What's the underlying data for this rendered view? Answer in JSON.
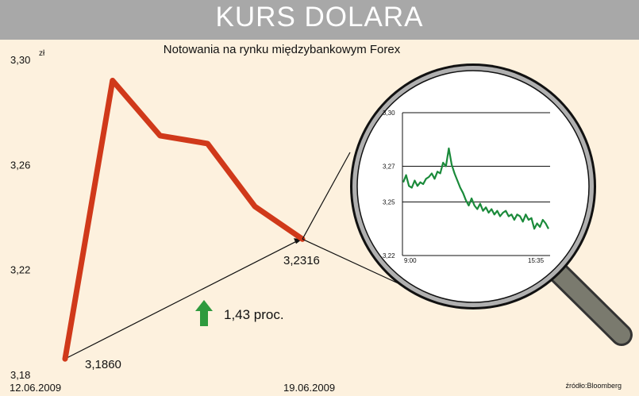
{
  "header": {
    "title": "KURS DOLARA"
  },
  "subtitle": "Notowania na rynku międzybankowym Forex",
  "unit": "zł",
  "source": "źródło:Bloomberg",
  "colors": {
    "main_line": "#d0391a",
    "inset_line": "#1a8a3a",
    "up_arrow": "#2e9a3e",
    "banner": "#a8a8a8",
    "background": "#fdf1de"
  },
  "chart_data": [
    {
      "type": "line",
      "title": "Notowania na rynku międzybankowym Forex",
      "ylim": [
        3.18,
        3.3
      ],
      "yticks": [
        "3,18",
        "3,22",
        "3,26",
        "3,30"
      ],
      "x_labels": [
        "12.06.2009",
        "19.06.2009"
      ],
      "series": [
        {
          "values": [
            3.186,
            3.292,
            3.271,
            3.268,
            3.244,
            3.2316
          ]
        }
      ],
      "annotations": {
        "start_value": "3,1860",
        "end_value": "3,2316",
        "change": "1,43 proc.",
        "change_icon": "up-arrow-icon"
      },
      "grid": false
    },
    {
      "type": "line",
      "ylim": [
        3.22,
        3.3
      ],
      "yticks": [
        "3,22",
        "3,25",
        "3,27",
        "3,30"
      ],
      "x_labels": [
        "9:00",
        "15:35"
      ],
      "gridlines": [
        3.3,
        3.27,
        3.25
      ],
      "series": [
        {
          "values": [
            3.261,
            3.265,
            3.259,
            3.258,
            3.262,
            3.259,
            3.261,
            3.26,
            3.263,
            3.264,
            3.266,
            3.263,
            3.267,
            3.266,
            3.272,
            3.27,
            3.28,
            3.271,
            3.266,
            3.262,
            3.258,
            3.255,
            3.251,
            3.248,
            3.252,
            3.248,
            3.246,
            3.249,
            3.245,
            3.247,
            3.244,
            3.246,
            3.243,
            3.245,
            3.242,
            3.244,
            3.245,
            3.242,
            3.243,
            3.24,
            3.243,
            3.242,
            3.239,
            3.243,
            3.24,
            3.241,
            3.235,
            3.238,
            3.236,
            3.24,
            3.238,
            3.235
          ]
        }
      ],
      "grid": true
    }
  ]
}
